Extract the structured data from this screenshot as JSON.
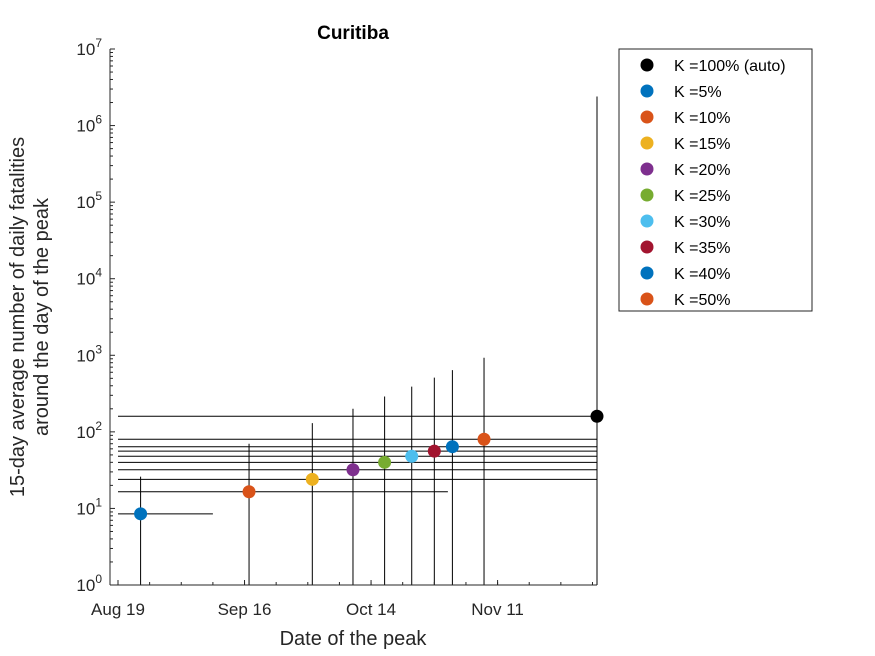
{
  "chart_data": {
    "type": "scatter",
    "title": "Curitiba",
    "xlabel": "Date of the peak",
    "ylabel_lines": [
      "15-day average number of daily fatalities",
      "around the day of the peak"
    ],
    "y_scale": "log",
    "ylim": [
      1,
      10000000
    ],
    "y_ticks": [
      {
        "value": 1,
        "base": "10",
        "exp": "0"
      },
      {
        "value": 10,
        "base": "10",
        "exp": "1"
      },
      {
        "value": 100,
        "base": "10",
        "exp": "2"
      },
      {
        "value": 1000,
        "base": "10",
        "exp": "3"
      },
      {
        "value": 10000,
        "base": "10",
        "exp": "4"
      },
      {
        "value": 100000,
        "base": "10",
        "exp": "5"
      },
      {
        "value": 1000000,
        "base": "10",
        "exp": "6"
      },
      {
        "value": 10000000,
        "base": "10",
        "exp": "7"
      }
    ],
    "xlim": [
      "2020-08-19",
      "2020-12-03"
    ],
    "x_ticks": [
      {
        "date": "2020-08-19",
        "label": "Aug 19"
      },
      {
        "date": "2020-09-16",
        "label": "Sep 16"
      },
      {
        "date": "2020-10-14",
        "label": "Oct 14"
      },
      {
        "date": "2020-11-11",
        "label": "Nov 11"
      }
    ],
    "legend_position": "outside-top-right",
    "series": [
      {
        "name": "K =100% (auto)",
        "color": "#000000",
        "date": "2020-12-03",
        "y": 160,
        "y_low": 1,
        "y_high": 2400000,
        "x_low": "2020-08-19",
        "x_high": "2020-12-03"
      },
      {
        "name": "K =5%",
        "color": "#0072BD",
        "date": "2020-08-24",
        "y": 8.5,
        "y_low": 1,
        "y_high": 26,
        "x_low": "2020-08-19",
        "x_high": "2020-09-09"
      },
      {
        "name": "K =10%",
        "color": "#D95319",
        "date": "2020-09-17",
        "y": 16.5,
        "y_low": 1,
        "y_high": 70,
        "x_low": "2020-08-19",
        "x_high": "2020-10-31"
      },
      {
        "name": "K =15%",
        "color": "#EDB120",
        "date": "2020-10-01",
        "y": 24,
        "y_low": 1,
        "y_high": 130,
        "x_low": "2020-08-19",
        "x_high": "2020-12-03"
      },
      {
        "name": "K =20%",
        "color": "#7E2F8E",
        "date": "2020-10-10",
        "y": 32,
        "y_low": 1,
        "y_high": 200,
        "x_low": "2020-08-19",
        "x_high": "2020-12-03"
      },
      {
        "name": "K =25%",
        "color": "#77AC30",
        "date": "2020-10-17",
        "y": 40,
        "y_low": 1,
        "y_high": 290,
        "x_low": "2020-08-19",
        "x_high": "2020-12-03"
      },
      {
        "name": "K =30%",
        "color": "#4DBEEE",
        "date": "2020-10-23",
        "y": 48,
        "y_low": 1,
        "y_high": 390,
        "x_low": "2020-08-19",
        "x_high": "2020-12-03"
      },
      {
        "name": "K =35%",
        "color": "#A2142F",
        "date": "2020-10-28",
        "y": 56,
        "y_low": 1,
        "y_high": 510,
        "x_low": "2020-08-19",
        "x_high": "2020-12-03"
      },
      {
        "name": "K =40%",
        "color": "#0072BD",
        "date": "2020-11-01",
        "y": 64,
        "y_low": 1,
        "y_high": 640,
        "x_low": "2020-08-19",
        "x_high": "2020-12-03"
      },
      {
        "name": "K =50%",
        "color": "#D95319",
        "date": "2020-11-08",
        "y": 80,
        "y_low": 1,
        "y_high": 930,
        "x_low": "2020-08-19",
        "x_high": "2020-12-03"
      }
    ]
  }
}
